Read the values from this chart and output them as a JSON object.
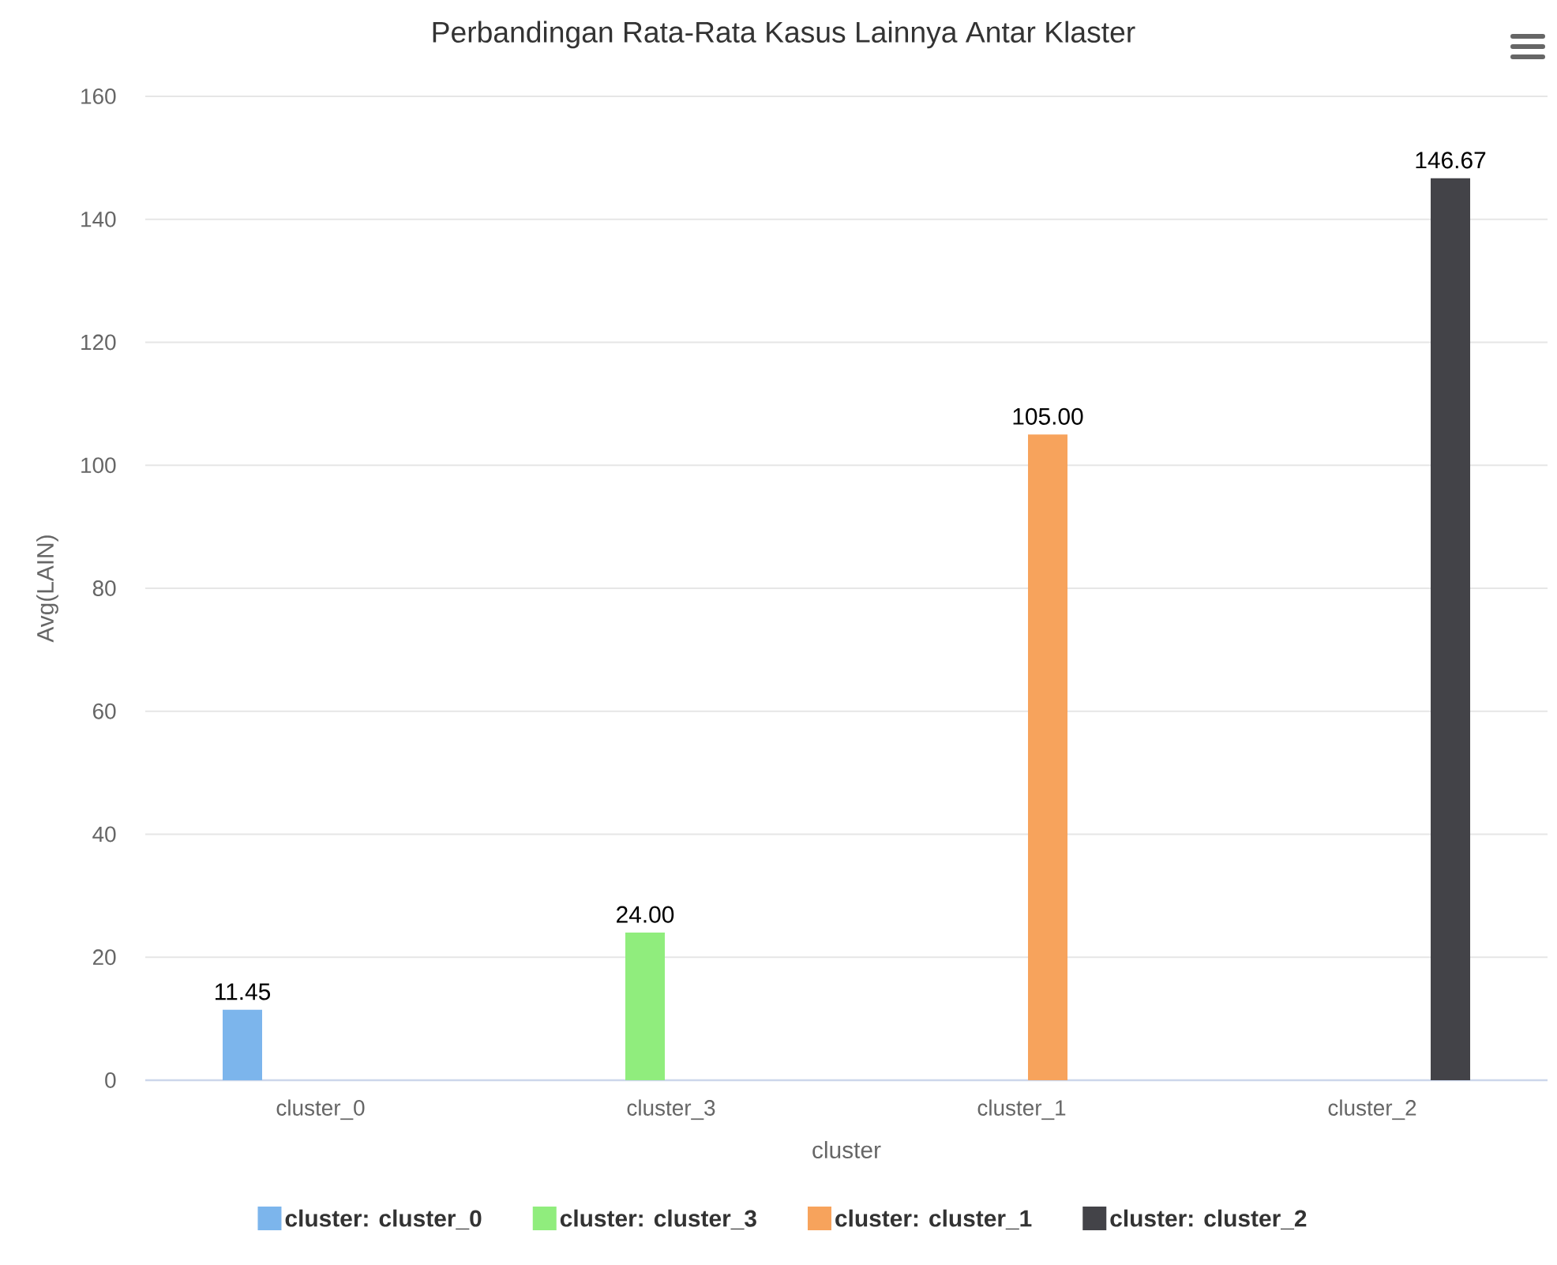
{
  "chart_data": {
    "type": "bar",
    "title": "Perbandingan Rata-Rata Kasus Lainnya Antar Klaster",
    "xlabel": "cluster",
    "ylabel": "Avg(LAIN)",
    "categories": [
      "cluster_0",
      "cluster_3",
      "cluster_1",
      "cluster_2"
    ],
    "series": [
      {
        "name": "cluster: cluster_0",
        "color": "#7cb5ec",
        "values": [
          11.45,
          null,
          null,
          null
        ],
        "value_labels": [
          "11.45",
          null,
          null,
          null
        ]
      },
      {
        "name": "cluster: cluster_3",
        "color": "#90ed7d",
        "values": [
          null,
          24,
          null,
          null
        ],
        "value_labels": [
          null,
          "24.00",
          null,
          null
        ]
      },
      {
        "name": "cluster: cluster_1",
        "color": "#f7a35c",
        "values": [
          null,
          null,
          105,
          null
        ],
        "value_labels": [
          null,
          null,
          "105.00",
          null
        ]
      },
      {
        "name": "cluster: cluster_2",
        "color": "#434348",
        "values": [
          null,
          null,
          null,
          146.67
        ],
        "value_labels": [
          null,
          null,
          null,
          "146.67"
        ]
      }
    ],
    "ylim": [
      0,
      160
    ],
    "yticks": [
      0,
      20,
      40,
      60,
      80,
      100,
      120,
      140,
      160
    ],
    "grid": "y",
    "legend": "bottom"
  }
}
